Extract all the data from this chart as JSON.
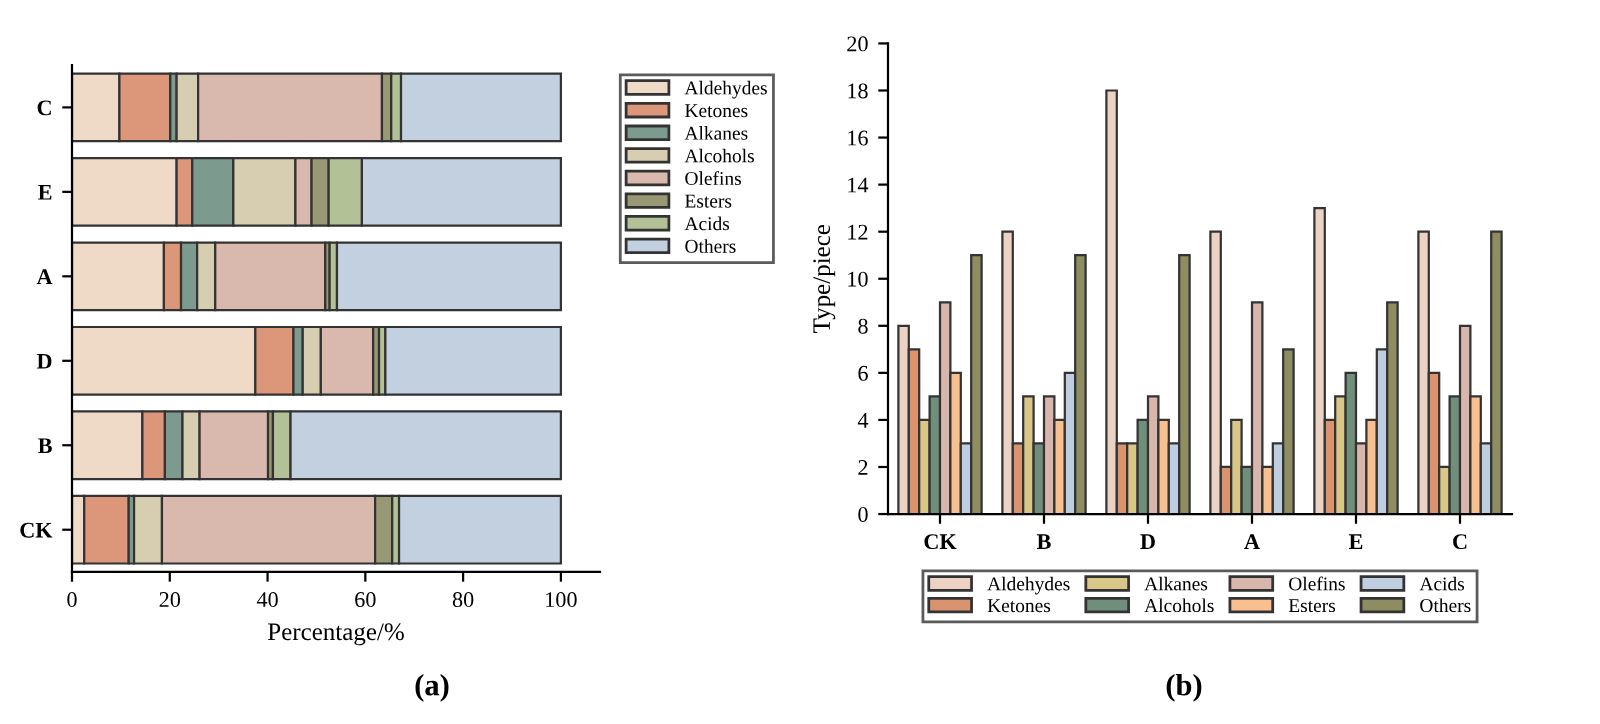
{
  "chart_data": [
    {
      "type": "bar",
      "orientation": "horizontal",
      "stacked": true,
      "xlabel": "Percentage/%",
      "annotations": [
        "(a)"
      ],
      "categories": [
        "C",
        "E",
        "A",
        "D",
        "B",
        "CK"
      ],
      "xlim": [
        0,
        108
      ],
      "xticks": [
        0,
        20,
        40,
        60,
        80,
        100
      ],
      "legend": "right",
      "grid": false,
      "series": [
        {
          "name": "Aldehydes",
          "color": "#efd9c7",
          "values": [
            9.7,
            21.4,
            18.8,
            37.5,
            14.4,
            2.5
          ]
        },
        {
          "name": "Ketones",
          "color": "#dc977a",
          "values": [
            10.4,
            3.2,
            3.5,
            7.8,
            4.6,
            9.1
          ]
        },
        {
          "name": "Alkanes",
          "color": "#7d9a8e",
          "values": [
            1.3,
            8.4,
            3.3,
            1.9,
            3.6,
            1.1
          ]
        },
        {
          "name": "Alcohols",
          "color": "#d7cdb0",
          "values": [
            4.4,
            12.7,
            3.7,
            3.7,
            3.5,
            5.7
          ]
        },
        {
          "name": "Olefins",
          "color": "#d9b8ae",
          "values": [
            37.6,
            3.3,
            22.5,
            10.7,
            14.0,
            43.6
          ]
        },
        {
          "name": "Esters",
          "color": "#999874",
          "values": [
            1.9,
            3.5,
            0.9,
            1.2,
            1.0,
            3.5
          ]
        },
        {
          "name": "Acids",
          "color": "#b3c196",
          "values": [
            2.0,
            6.8,
            1.5,
            1.3,
            3.6,
            1.4
          ]
        },
        {
          "name": "Others",
          "color": "#c3d0df",
          "values": [
            32.7,
            40.7,
            45.8,
            35.9,
            55.3,
            33.1
          ]
        }
      ]
    },
    {
      "type": "bar",
      "ylabel": "Type/piece",
      "annotations": [
        "(b)"
      ],
      "categories": [
        "CK",
        "B",
        "D",
        "A",
        "E",
        "C"
      ],
      "ylim": [
        0,
        20
      ],
      "yticks": [
        0,
        2,
        4,
        6,
        8,
        10,
        12,
        14,
        16,
        18,
        20
      ],
      "legend": "bottom",
      "grid": false,
      "series": [
        {
          "name": "Aldehydes",
          "color": "#ecd2c2",
          "values": [
            8,
            12,
            18,
            12,
            13,
            12
          ]
        },
        {
          "name": "Ketones",
          "color": "#d9936f",
          "values": [
            7,
            3,
            3,
            2,
            4,
            6
          ]
        },
        {
          "name": "Alkanes",
          "color": "#d9c78a",
          "values": [
            4,
            5,
            3,
            4,
            5,
            2
          ]
        },
        {
          "name": "Alcohols",
          "color": "#6f8f7b",
          "values": [
            5,
            3,
            4,
            2,
            6,
            5
          ]
        },
        {
          "name": "Olefins",
          "color": "#d8b6ac",
          "values": [
            9,
            5,
            5,
            9,
            3,
            8
          ]
        },
        {
          "name": "Esters",
          "color": "#f8c08e",
          "values": [
            6,
            4,
            4,
            2,
            4,
            5
          ]
        },
        {
          "name": "Acids",
          "color": "#bfcee0",
          "values": [
            3,
            6,
            3,
            3,
            7,
            3
          ]
        },
        {
          "name": "Others",
          "color": "#8e8d62",
          "values": [
            11,
            11,
            11,
            7,
            9,
            12
          ]
        }
      ]
    }
  ]
}
